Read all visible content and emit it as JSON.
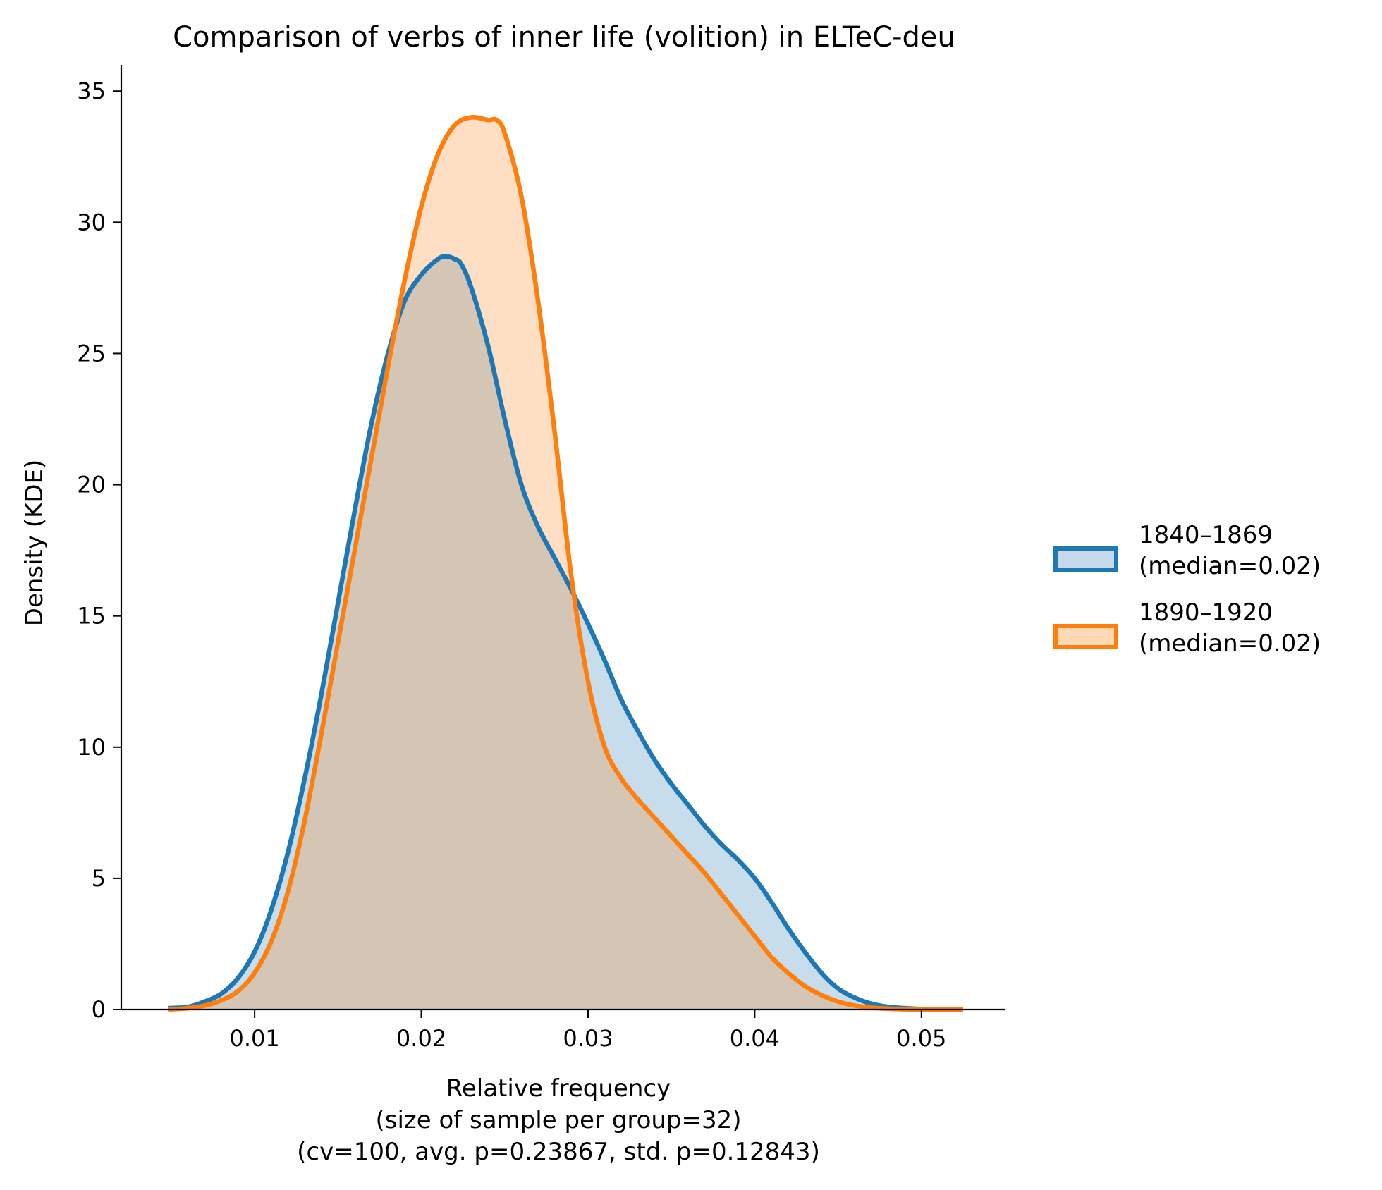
{
  "chart_data": {
    "type": "area",
    "title": "Comparison of verbs of inner life (volition) in ELTeC-deu",
    "xlabel": [
      "Relative frequency",
      "(size of sample per group=32)",
      "(cv=100, avg. p=0.23867, std. p=0.12843)"
    ],
    "ylabel": "Density (KDE)",
    "xlim": [
      0.002,
      0.055
    ],
    "ylim": [
      0,
      36
    ],
    "xticks": [
      0.01,
      0.02,
      0.03,
      0.04,
      0.05
    ],
    "xtick_labels": [
      "0.01",
      "0.02",
      "0.03",
      "0.04",
      "0.05"
    ],
    "yticks": [
      0,
      5,
      10,
      15,
      20,
      25,
      30,
      35
    ],
    "ytick_labels": [
      "0",
      "5",
      "10",
      "15",
      "20",
      "25",
      "30",
      "35"
    ],
    "grid": false,
    "legend_position": "right",
    "series": [
      {
        "name": "1840–1869\n(median=0.02)",
        "legend_lines": [
          "1840–1869",
          "(median=0.02)"
        ],
        "color": "#1f77b4",
        "fill": "#c6d9ea",
        "x": [
          0.0048,
          0.006,
          0.007,
          0.008,
          0.009,
          0.01,
          0.011,
          0.012,
          0.013,
          0.014,
          0.015,
          0.016,
          0.017,
          0.018,
          0.019,
          0.02,
          0.021,
          0.0215,
          0.022,
          0.0224,
          0.023,
          0.024,
          0.025,
          0.026,
          0.027,
          0.028,
          0.029,
          0.03,
          0.031,
          0.032,
          0.033,
          0.034,
          0.035,
          0.036,
          0.037,
          0.038,
          0.039,
          0.04,
          0.041,
          0.042,
          0.043,
          0.044,
          0.045,
          0.046,
          0.047,
          0.048,
          0.049,
          0.05,
          0.051,
          0.0525
        ],
        "y": [
          0.05,
          0.1,
          0.3,
          0.6,
          1.2,
          2.2,
          3.8,
          6.0,
          8.8,
          12.0,
          15.5,
          19.0,
          22.3,
          25.0,
          27.0,
          28.0,
          28.6,
          28.7,
          28.6,
          28.4,
          27.5,
          25.3,
          22.5,
          20.0,
          18.4,
          17.2,
          16.0,
          14.7,
          13.3,
          11.8,
          10.6,
          9.5,
          8.6,
          7.8,
          7.0,
          6.3,
          5.7,
          5.0,
          4.1,
          3.1,
          2.2,
          1.4,
          0.8,
          0.45,
          0.22,
          0.1,
          0.05,
          0.02,
          0.01,
          0.0
        ]
      },
      {
        "name": "1890–1920\n(median=0.02)",
        "legend_lines": [
          "1890–1920",
          "(median=0.02)"
        ],
        "color": "#ff7f0e",
        "fill": "#ffd9b5",
        "x": [
          0.0048,
          0.006,
          0.007,
          0.008,
          0.009,
          0.01,
          0.011,
          0.012,
          0.013,
          0.014,
          0.015,
          0.016,
          0.017,
          0.018,
          0.019,
          0.02,
          0.021,
          0.022,
          0.023,
          0.024,
          0.0245,
          0.025,
          0.026,
          0.027,
          0.028,
          0.029,
          0.03,
          0.031,
          0.032,
          0.033,
          0.034,
          0.035,
          0.036,
          0.037,
          0.038,
          0.039,
          0.04,
          0.041,
          0.042,
          0.043,
          0.044,
          0.045,
          0.046,
          0.047,
          0.048,
          0.049,
          0.05,
          0.051,
          0.0525
        ],
        "y": [
          0.0,
          0.05,
          0.15,
          0.35,
          0.7,
          1.4,
          2.6,
          4.5,
          7.2,
          10.5,
          14.0,
          17.5,
          21.0,
          24.5,
          27.8,
          30.6,
          32.6,
          33.7,
          34.0,
          33.9,
          33.9,
          33.4,
          31.0,
          27.0,
          22.0,
          16.5,
          12.5,
          10.0,
          8.8,
          8.0,
          7.3,
          6.6,
          5.9,
          5.2,
          4.4,
          3.6,
          2.8,
          2.0,
          1.4,
          0.9,
          0.55,
          0.3,
          0.15,
          0.07,
          0.03,
          0.01,
          0.0,
          0.0,
          0.0
        ]
      }
    ]
  }
}
